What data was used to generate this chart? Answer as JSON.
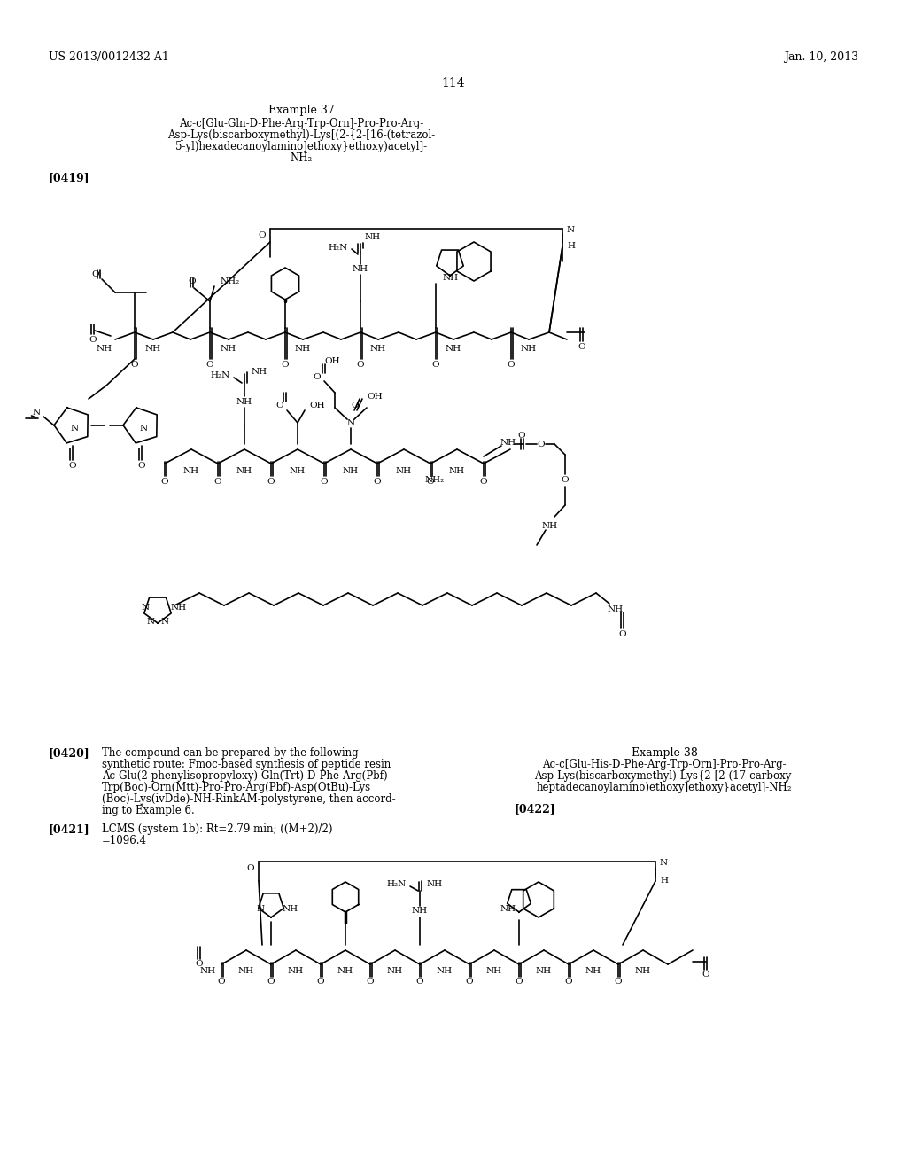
{
  "page_header_left": "US 2013/0012432 A1",
  "page_header_right": "Jan. 10, 2013",
  "page_number": "114",
  "example37_title": "Example 37",
  "example37_lines": [
    "Ac-c[Glu-Gln-D-Phe-Arg-Trp-Orn]-Pro-Pro-Arg-",
    "Asp-Lys(biscarboxymethyl)-Lys[(2-{2-[16-(tetrazol-",
    "5-yl)hexadecanoylamino]ethoxy}ethoxy)acetyl]-",
    "NH₂"
  ],
  "label_0419": "[0419]",
  "label_0420": "[0420]",
  "para_0420": [
    "The compound can be prepared by the following",
    "synthetic route: Fmoc-based synthesis of peptide resin",
    "Ac-Glu(2-phenylisopropyloxy)-Gln(Trt)-D-Phe-Arg(Pbf)-",
    "Trp(Boc)-Orn(Mtt)-Pro-Pro-Arg(Pbf)-Asp(OtBu)-Lys",
    "(Boc)-Lys(ivDde)-NH-RinkAM-polystyrene, then accord-",
    "ing to Example 6."
  ],
  "label_0421": "[0421]",
  "para_0421": [
    "LCMS (system 1b): Rt=2.79 min; ((M+2)/2)",
    "=1096.4"
  ],
  "example38_title": "Example 38",
  "example38_lines": [
    "Ac-c[Glu-His-D-Phe-Arg-Trp-Orn]-Pro-Pro-Arg-",
    "Asp-Lys(biscarboxymethyl)-Lys{2-[2-(17-carboxy-",
    "heptadecanoylamino)ethoxy]ethoxy}acetyl]-NH₂"
  ],
  "label_0422": "[0422]",
  "bg_color": "#ffffff",
  "text_color": "#000000"
}
